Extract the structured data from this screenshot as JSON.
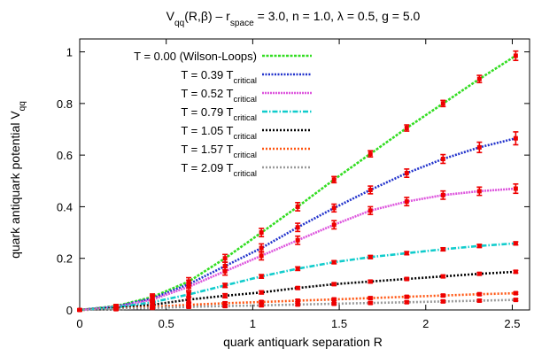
{
  "chart_data": {
    "type": "line",
    "title": {
      "parts": [
        {
          "text": "V"
        },
        {
          "text": "qq",
          "sub": true
        },
        {
          "text": "(R,β)   –   r"
        },
        {
          "text": "space",
          "sub": true
        },
        {
          "text": " = 3.0, n = 1.0, λ = 0.5, g = 5.0"
        }
      ]
    },
    "xlabel": "quark antiquark separation R",
    "ylabel": {
      "parts": [
        {
          "text": "quark antiquark potential V"
        },
        {
          "text": "qq",
          "sub": true
        }
      ]
    },
    "xlim": [
      0,
      2.6
    ],
    "ylim": [
      0,
      1.05
    ],
    "xticks": [
      0,
      0.5,
      1,
      1.5,
      2,
      2.5
    ],
    "xtick_labels": [
      "0",
      "0.5",
      "1",
      "1.5",
      "2",
      "2.5"
    ],
    "yticks": [
      0,
      0.2,
      0.4,
      0.6,
      0.8,
      1
    ],
    "ytick_labels": [
      "0",
      "0.2",
      "0.4",
      "0.6",
      "0.8",
      "1"
    ],
    "grid": false,
    "legend_position": "top-left",
    "error_bar_color": "#ee0000",
    "x": [
      0,
      0.21,
      0.42,
      0.63,
      0.84,
      1.05,
      1.26,
      1.47,
      1.68,
      1.89,
      2.1,
      2.31,
      2.52
    ],
    "series": [
      {
        "legend_parts": [
          {
            "text": "T = 0.00 (Wilson-Loops)"
          }
        ],
        "color": "#33dd22",
        "dash": "3,1.5",
        "values": [
          0,
          0.015,
          0.05,
          0.11,
          0.2,
          0.3,
          0.4,
          0.505,
          0.605,
          0.705,
          0.8,
          0.895,
          0.985
        ],
        "errors": [
          0,
          0.006,
          0.012,
          0.015,
          0.015,
          0.016,
          0.016,
          0.012,
          0.012,
          0.012,
          0.012,
          0.014,
          0.018
        ]
      },
      {
        "legend_parts": [
          {
            "text": "T = 0.39 T"
          },
          {
            "text": "critical",
            "sub": true
          }
        ],
        "color": "#2233cc",
        "dash": "2,1.5",
        "values": [
          0,
          0.013,
          0.045,
          0.1,
          0.17,
          0.24,
          0.32,
          0.395,
          0.465,
          0.53,
          0.585,
          0.63,
          0.665
        ],
        "errors": [
          0,
          0.006,
          0.012,
          0.015,
          0.015,
          0.016,
          0.016,
          0.015,
          0.015,
          0.016,
          0.017,
          0.02,
          0.025
        ]
      },
      {
        "legend_parts": [
          {
            "text": "T = 0.52 T"
          },
          {
            "text": "critical",
            "sub": true
          }
        ],
        "color": "#dd55dd",
        "dash": "2,1",
        "values": [
          0,
          0.012,
          0.04,
          0.09,
          0.15,
          0.21,
          0.27,
          0.33,
          0.385,
          0.42,
          0.445,
          0.46,
          0.47
        ],
        "errors": [
          0,
          0.006,
          0.012,
          0.014,
          0.015,
          0.016,
          0.016,
          0.016,
          0.015,
          0.016,
          0.016,
          0.016,
          0.018
        ]
      },
      {
        "legend_parts": [
          {
            "text": "T = 0.79 T"
          },
          {
            "text": "critical",
            "sub": true
          }
        ],
        "color": "#11cccc",
        "dash": "6,2,1.5,2",
        "values": [
          0,
          0.01,
          0.03,
          0.06,
          0.095,
          0.13,
          0.16,
          0.185,
          0.205,
          0.22,
          0.235,
          0.248,
          0.258
        ],
        "errors": [
          0,
          0.006,
          0.01,
          0.01,
          0.008,
          0.007,
          0.007,
          0.006,
          0.006,
          0.006,
          0.006,
          0.006,
          0.006
        ]
      },
      {
        "legend_parts": [
          {
            "text": "T = 1.05 T"
          },
          {
            "text": "critical",
            "sub": true
          }
        ],
        "color": "#000000",
        "dash": "2,2",
        "values": [
          0,
          0.007,
          0.02,
          0.04,
          0.055,
          0.068,
          0.085,
          0.1,
          0.11,
          0.12,
          0.13,
          0.14,
          0.148
        ],
        "errors": [
          0,
          0.005,
          0.01,
          0.01,
          0.008,
          0.006,
          0.005,
          0.005,
          0.005,
          0.005,
          0.005,
          0.005,
          0.005
        ]
      },
      {
        "legend_parts": [
          {
            "text": "T = 1.57 T"
          },
          {
            "text": "critical",
            "sub": true
          }
        ],
        "color": "#ff5511",
        "dash": "2,2",
        "values": [
          0,
          0.004,
          0.012,
          0.02,
          0.026,
          0.031,
          0.036,
          0.041,
          0.046,
          0.051,
          0.056,
          0.061,
          0.065
        ],
        "errors": [
          0,
          0.004,
          0.006,
          0.006,
          0.005,
          0.004,
          0.004,
          0.004,
          0.004,
          0.004,
          0.004,
          0.004,
          0.004
        ]
      },
      {
        "legend_parts": [
          {
            "text": "T = 2.09 T"
          },
          {
            "text": "critical",
            "sub": true
          }
        ],
        "color": "#999999",
        "dash": "2,2",
        "values": [
          0,
          0.003,
          0.008,
          0.012,
          0.015,
          0.018,
          0.021,
          0.024,
          0.027,
          0.03,
          0.033,
          0.036,
          0.039
        ],
        "errors": [
          0,
          0.003,
          0.004,
          0.004,
          0.004,
          0.003,
          0.003,
          0.003,
          0.003,
          0.003,
          0.003,
          0.003,
          0.003
        ]
      }
    ]
  }
}
